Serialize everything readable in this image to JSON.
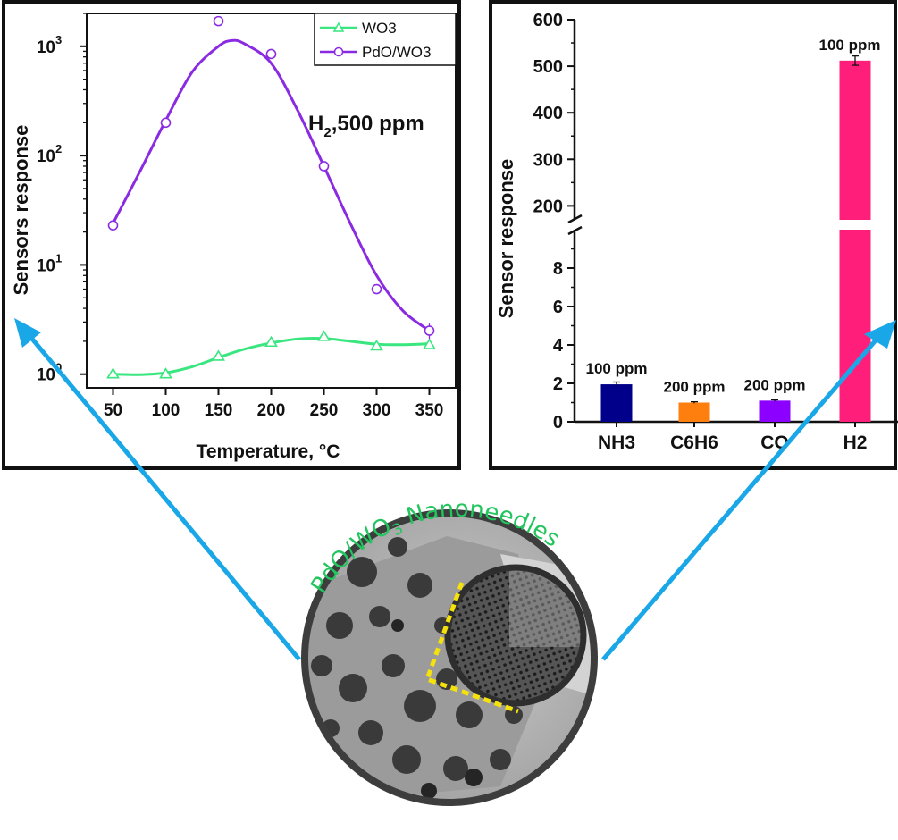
{
  "chart_data": [
    {
      "type": "line",
      "title": "",
      "annotation": {
        "main": "H",
        "sub": "2",
        "rest": ",500 ppm"
      },
      "xlabel": "Temperature, °C",
      "ylabel": "Sensors response",
      "yscale": "log",
      "xlim": [
        25,
        375
      ],
      "ylim": [
        0.75,
        2000
      ],
      "xticks": [
        50,
        100,
        150,
        200,
        250,
        300,
        350
      ],
      "yticks": [
        {
          "value": 1,
          "base": "10",
          "exp": "0"
        },
        {
          "value": 10,
          "base": "10",
          "exp": "1"
        },
        {
          "value": 100,
          "base": "10",
          "exp": "2"
        },
        {
          "value": 1000,
          "base": "10",
          "exp": "3"
        }
      ],
      "legend_position": "top-right",
      "x": [
        50,
        100,
        150,
        200,
        250,
        300,
        350
      ],
      "series": [
        {
          "name": "WO3",
          "color": "#39e67f",
          "marker": "triangle",
          "values": [
            1.0,
            1.0,
            1.45,
            1.95,
            2.2,
            1.8,
            1.85
          ],
          "fit": [
            [
              50,
              1.0
            ],
            [
              75,
              0.99
            ],
            [
              100,
              1.03
            ],
            [
              125,
              1.17
            ],
            [
              150,
              1.42
            ],
            [
              175,
              1.7
            ],
            [
              200,
              1.93
            ],
            [
              225,
              2.1
            ],
            [
              250,
              2.12
            ],
            [
              275,
              2.0
            ],
            [
              300,
              1.88
            ],
            [
              325,
              1.86
            ],
            [
              350,
              1.9
            ]
          ]
        },
        {
          "name": "PdO/WO3",
          "color": "#8a2be2",
          "marker": "circle",
          "values": [
            23,
            200,
            1700,
            850,
            80,
            6,
            2.5
          ],
          "errors": [
            [
              21,
              25
            ],
            [
              190,
              210
            ],
            [
              1620,
              1780
            ],
            [
              800,
              900
            ],
            [
              76,
              84
            ],
            [
              5.5,
              6.5
            ],
            [
              2.1,
              2.9
            ]
          ],
          "fit": [
            [
              50,
              24
            ],
            [
              75,
              70
            ],
            [
              100,
              210
            ],
            [
              125,
              580
            ],
            [
              150,
              1000
            ],
            [
              163,
              1130
            ],
            [
              175,
              1050
            ],
            [
              200,
              700
            ],
            [
              225,
              260
            ],
            [
              250,
              80
            ],
            [
              275,
              24
            ],
            [
              300,
              8
            ],
            [
              325,
              3.8
            ],
            [
              350,
              2.5
            ]
          ]
        }
      ]
    },
    {
      "type": "bar",
      "title": "",
      "xlabel": "",
      "ylabel": "Sensor response",
      "broken_axis": true,
      "lower_ylim": [
        0,
        10
      ],
      "upper_ylim": [
        170,
        600
      ],
      "lower_yticks": [
        0,
        2,
        4,
        6,
        8
      ],
      "upper_yticks": [
        200,
        300,
        400,
        500,
        600
      ],
      "categories": [
        "NH3",
        "C6H6",
        "CO",
        "H2"
      ],
      "values": [
        1.95,
        1.0,
        1.1,
        512
      ],
      "errors": [
        0.12,
        0.04,
        0.04,
        10
      ],
      "colors": [
        "#00008b",
        "#ff7f0e",
        "#8b00ff",
        "#ff1f7a"
      ],
      "labels": [
        "100 ppm",
        "200 ppm",
        "200 ppm",
        "100 ppm"
      ]
    }
  ],
  "caption": {
    "text1": "PdO/WO",
    "sub": "3",
    "text2": " Nanoneedles"
  }
}
